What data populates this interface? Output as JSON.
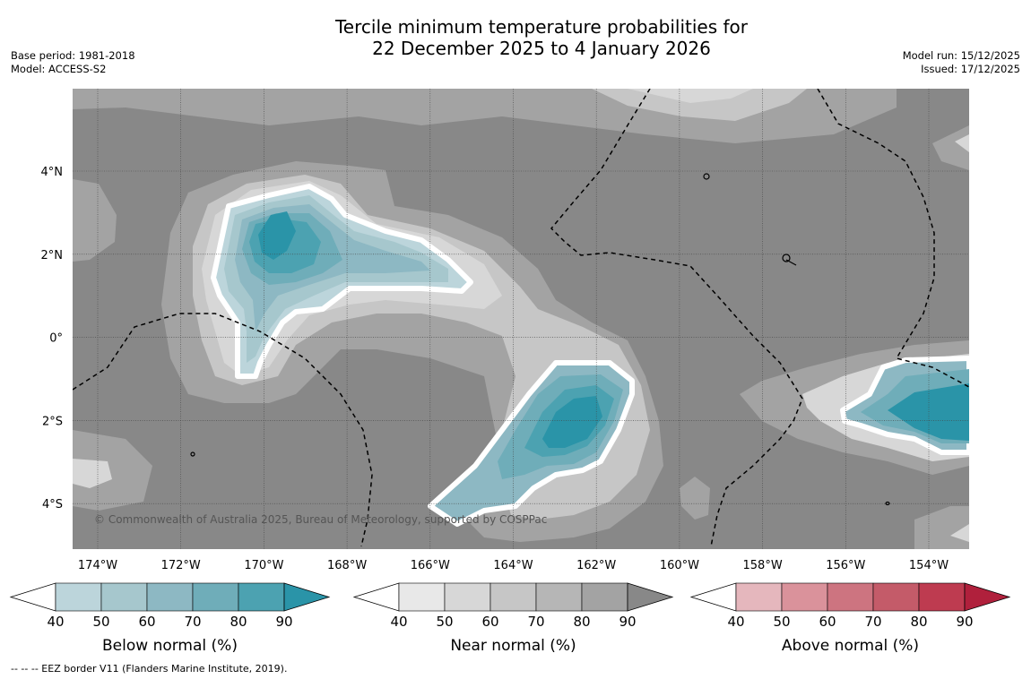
{
  "title_line1": "Tercile minimum temperature probabilities for",
  "title_line2": "22 December 2025 to 4 January 2026",
  "base_period": "Base period: 1981-2018",
  "model": "Model: ACCESS-S2",
  "model_run": "Model run: 15/12/2025",
  "issued": "Issued: 17/12/2025",
  "credit": "© Commonwealth of Australia 2025, Bureau of Meteorology, supported by COSPPac",
  "footer": "--  --  -- EEZ border V11 (Flanders Marine Institute, 2019).",
  "lon_labels": [
    "174°W",
    "172°W",
    "170°W",
    "168°W",
    "166°W",
    "164°W",
    "162°W",
    "160°W",
    "158°W",
    "156°W",
    "154°W"
  ],
  "lat_labels": [
    "4°N",
    "2°N",
    "0°",
    "2°S",
    "4°S"
  ],
  "colorbars": [
    {
      "title": "Below normal (%)",
      "ticks": [
        "40",
        "50",
        "60",
        "70",
        "80",
        "90"
      ],
      "colors": [
        "#bcd5db",
        "#a6c7cd",
        "#8db8c3",
        "#6fadb9",
        "#4ca2b1",
        "#2a94a8"
      ]
    },
    {
      "title": "Near normal (%)",
      "ticks": [
        "40",
        "50",
        "60",
        "70",
        "80",
        "90"
      ],
      "colors": [
        "#e8e8e8",
        "#d7d7d7",
        "#c6c6c6",
        "#b6b6b6",
        "#a3a3a3",
        "#888888"
      ]
    },
    {
      "title": "Above normal (%)",
      "ticks": [
        "40",
        "50",
        "60",
        "70",
        "80",
        "90"
      ],
      "colors": [
        "#e5b7bd",
        "#da929b",
        "#cd7480",
        "#c45b69",
        "#be3b50",
        "#b0203c"
      ]
    }
  ],
  "colors": {
    "background_gray": "#888888"
  }
}
